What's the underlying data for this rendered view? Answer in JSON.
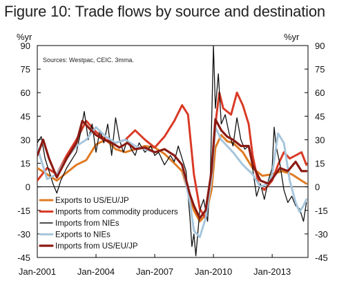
{
  "chart_data": {
    "type": "line",
    "title": "Figure 10: Trade flows by source and destination",
    "ylabel_left": "%yr",
    "ylabel_right": "%yr",
    "note": "Sources: Westpac, CEIC. 3mma.",
    "ylim": [
      -45,
      90
    ],
    "yticks": [
      90,
      75,
      60,
      45,
      30,
      15,
      0,
      -15,
      -30,
      -45
    ],
    "xlim": [
      2001.0,
      2014.83
    ],
    "xticks": [
      {
        "x": 2001.0,
        "label": "Jan-2001"
      },
      {
        "x": 2004.0,
        "label": "Jan-2004"
      },
      {
        "x": 2007.0,
        "label": "Jan-2007"
      },
      {
        "x": 2010.0,
        "label": "Jan-2010"
      },
      {
        "x": 2013.0,
        "label": "Jan-2013"
      }
    ],
    "legend_position": "bottom-left",
    "series": [
      {
        "name": "Exports to US/EU/JP",
        "color": "#e07b22",
        "width": 3,
        "points": [
          [
            2001.0,
            12
          ],
          [
            2001.5,
            8
          ],
          [
            2002.0,
            4
          ],
          [
            2002.5,
            9
          ],
          [
            2003.0,
            14
          ],
          [
            2003.5,
            17
          ],
          [
            2004.0,
            27
          ],
          [
            2004.5,
            30
          ],
          [
            2005.0,
            24
          ],
          [
            2005.5,
            22
          ],
          [
            2006.0,
            24
          ],
          [
            2006.5,
            26
          ],
          [
            2007.0,
            25
          ],
          [
            2007.5,
            21
          ],
          [
            2008.0,
            15
          ],
          [
            2008.4,
            10
          ],
          [
            2008.75,
            -5
          ],
          [
            2009.0,
            -15
          ],
          [
            2009.3,
            -22
          ],
          [
            2009.6,
            -18
          ],
          [
            2009.9,
            -2
          ],
          [
            2010.1,
            25
          ],
          [
            2010.4,
            33
          ],
          [
            2010.7,
            29
          ],
          [
            2011.0,
            28
          ],
          [
            2011.5,
            22
          ],
          [
            2012.0,
            12
          ],
          [
            2012.5,
            7
          ],
          [
            2013.0,
            8
          ],
          [
            2013.5,
            10
          ],
          [
            2014.0,
            8
          ],
          [
            2014.5,
            4
          ],
          [
            2014.75,
            2
          ]
        ]
      },
      {
        "name": "Imports from commodity producers",
        "color": "#d93a26",
        "width": 3,
        "points": [
          [
            2001.0,
            4
          ],
          [
            2001.5,
            12
          ],
          [
            2002.0,
            8
          ],
          [
            2002.5,
            20
          ],
          [
            2003.0,
            30
          ],
          [
            2003.5,
            42
          ],
          [
            2004.0,
            35
          ],
          [
            2004.5,
            30
          ],
          [
            2005.0,
            28
          ],
          [
            2005.5,
            30
          ],
          [
            2006.0,
            36
          ],
          [
            2006.5,
            30
          ],
          [
            2007.0,
            25
          ],
          [
            2007.5,
            32
          ],
          [
            2008.0,
            42
          ],
          [
            2008.4,
            52
          ],
          [
            2008.7,
            46
          ],
          [
            2009.0,
            8
          ],
          [
            2009.3,
            -14
          ],
          [
            2009.6,
            -20
          ],
          [
            2009.9,
            8
          ],
          [
            2010.1,
            40
          ],
          [
            2010.3,
            60
          ],
          [
            2010.5,
            50
          ],
          [
            2010.9,
            46
          ],
          [
            2011.2,
            60
          ],
          [
            2011.5,
            52
          ],
          [
            2011.8,
            40
          ],
          [
            2012.0,
            20
          ],
          [
            2012.3,
            2
          ],
          [
            2012.6,
            -2
          ],
          [
            2013.0,
            4
          ],
          [
            2013.3,
            14
          ],
          [
            2013.6,
            22
          ],
          [
            2013.9,
            18
          ],
          [
            2014.2,
            20
          ],
          [
            2014.5,
            22
          ],
          [
            2014.75,
            14
          ]
        ]
      },
      {
        "name": "Imports from NIEs",
        "color": "#111111",
        "width": 1.3,
        "points": [
          [
            2001.0,
            28
          ],
          [
            2001.2,
            32
          ],
          [
            2001.4,
            18
          ],
          [
            2001.6,
            10
          ],
          [
            2001.8,
            2
          ],
          [
            2002.0,
            -4
          ],
          [
            2002.2,
            4
          ],
          [
            2002.5,
            12
          ],
          [
            2002.8,
            18
          ],
          [
            2003.0,
            22
          ],
          [
            2003.2,
            34
          ],
          [
            2003.4,
            48
          ],
          [
            2003.6,
            30
          ],
          [
            2003.8,
            40
          ],
          [
            2004.0,
            22
          ],
          [
            2004.2,
            36
          ],
          [
            2004.4,
            28
          ],
          [
            2004.6,
            40
          ],
          [
            2004.8,
            20
          ],
          [
            2005.0,
            44
          ],
          [
            2005.2,
            30
          ],
          [
            2005.4,
            22
          ],
          [
            2005.6,
            30
          ],
          [
            2005.8,
            24
          ],
          [
            2006.0,
            20
          ],
          [
            2006.2,
            28
          ],
          [
            2006.5,
            22
          ],
          [
            2006.8,
            26
          ],
          [
            2007.0,
            20
          ],
          [
            2007.2,
            22
          ],
          [
            2007.5,
            14
          ],
          [
            2007.8,
            20
          ],
          [
            2008.0,
            16
          ],
          [
            2008.2,
            26
          ],
          [
            2008.4,
            18
          ],
          [
            2008.6,
            10
          ],
          [
            2008.8,
            -20
          ],
          [
            2008.9,
            -38
          ],
          [
            2009.0,
            -30
          ],
          [
            2009.1,
            -44
          ],
          [
            2009.3,
            -15
          ],
          [
            2009.5,
            -8
          ],
          [
            2009.7,
            -22
          ],
          [
            2009.85,
            10
          ],
          [
            2010.0,
            90
          ],
          [
            2010.1,
            50
          ],
          [
            2010.25,
            72
          ],
          [
            2010.4,
            40
          ],
          [
            2010.6,
            46
          ],
          [
            2010.8,
            34
          ],
          [
            2011.0,
            26
          ],
          [
            2011.2,
            44
          ],
          [
            2011.4,
            30
          ],
          [
            2011.6,
            24
          ],
          [
            2011.8,
            26
          ],
          [
            2012.0,
            12
          ],
          [
            2012.2,
            -6
          ],
          [
            2012.4,
            2
          ],
          [
            2012.6,
            -8
          ],
          [
            2012.8,
            4
          ],
          [
            2013.0,
            12
          ],
          [
            2013.1,
            38
          ],
          [
            2013.2,
            26
          ],
          [
            2013.4,
            14
          ],
          [
            2013.6,
            -2
          ],
          [
            2013.8,
            -10
          ],
          [
            2014.0,
            -6
          ],
          [
            2014.2,
            -12
          ],
          [
            2014.4,
            -14
          ],
          [
            2014.6,
            -22
          ],
          [
            2014.75,
            -10
          ]
        ]
      },
      {
        "name": "Exports to NIEs",
        "color": "#a7c6dc",
        "width": 3,
        "points": [
          [
            2001.0,
            25
          ],
          [
            2001.5,
            5
          ],
          [
            2002.0,
            8
          ],
          [
            2002.5,
            18
          ],
          [
            2003.0,
            26
          ],
          [
            2003.5,
            30
          ],
          [
            2004.0,
            38
          ],
          [
            2004.5,
            32
          ],
          [
            2005.0,
            28
          ],
          [
            2005.5,
            30
          ],
          [
            2006.0,
            26
          ],
          [
            2006.5,
            24
          ],
          [
            2007.0,
            22
          ],
          [
            2007.5,
            24
          ],
          [
            2008.0,
            20
          ],
          [
            2008.4,
            14
          ],
          [
            2008.8,
            -10
          ],
          [
            2009.0,
            -28
          ],
          [
            2009.3,
            -32
          ],
          [
            2009.6,
            -20
          ],
          [
            2009.9,
            5
          ],
          [
            2010.1,
            38
          ],
          [
            2010.4,
            30
          ],
          [
            2010.7,
            26
          ],
          [
            2011.0,
            22
          ],
          [
            2011.5,
            14
          ],
          [
            2012.0,
            8
          ],
          [
            2012.4,
            0
          ],
          [
            2012.8,
            2
          ],
          [
            2013.0,
            8
          ],
          [
            2013.3,
            34
          ],
          [
            2013.6,
            28
          ],
          [
            2013.9,
            4
          ],
          [
            2014.2,
            -10
          ],
          [
            2014.4,
            -16
          ],
          [
            2014.6,
            -12
          ],
          [
            2014.75,
            -8
          ]
        ]
      },
      {
        "name": "Imports from US/EU/JP",
        "color": "#8b1a12",
        "width": 3.2,
        "points": [
          [
            2001.0,
            20
          ],
          [
            2001.3,
            30
          ],
          [
            2001.6,
            18
          ],
          [
            2002.0,
            6
          ],
          [
            2002.5,
            18
          ],
          [
            2003.0,
            28
          ],
          [
            2003.3,
            42
          ],
          [
            2003.6,
            38
          ],
          [
            2004.0,
            33
          ],
          [
            2004.4,
            30
          ],
          [
            2004.8,
            28
          ],
          [
            2005.2,
            25
          ],
          [
            2005.6,
            28
          ],
          [
            2006.0,
            24
          ],
          [
            2006.5,
            25
          ],
          [
            2007.0,
            22
          ],
          [
            2007.5,
            24
          ],
          [
            2008.0,
            20
          ],
          [
            2008.4,
            14
          ],
          [
            2008.8,
            -5
          ],
          [
            2009.0,
            -12
          ],
          [
            2009.3,
            -20
          ],
          [
            2009.6,
            -15
          ],
          [
            2009.9,
            10
          ],
          [
            2010.1,
            43
          ],
          [
            2010.4,
            36
          ],
          [
            2010.7,
            32
          ],
          [
            2011.0,
            30
          ],
          [
            2011.4,
            26
          ],
          [
            2011.8,
            26
          ],
          [
            2012.0,
            14
          ],
          [
            2012.4,
            4
          ],
          [
            2012.8,
            2
          ],
          [
            2013.0,
            5
          ],
          [
            2013.4,
            12
          ],
          [
            2013.8,
            10
          ],
          [
            2014.2,
            16
          ],
          [
            2014.5,
            10
          ],
          [
            2014.75,
            10
          ]
        ]
      }
    ]
  }
}
